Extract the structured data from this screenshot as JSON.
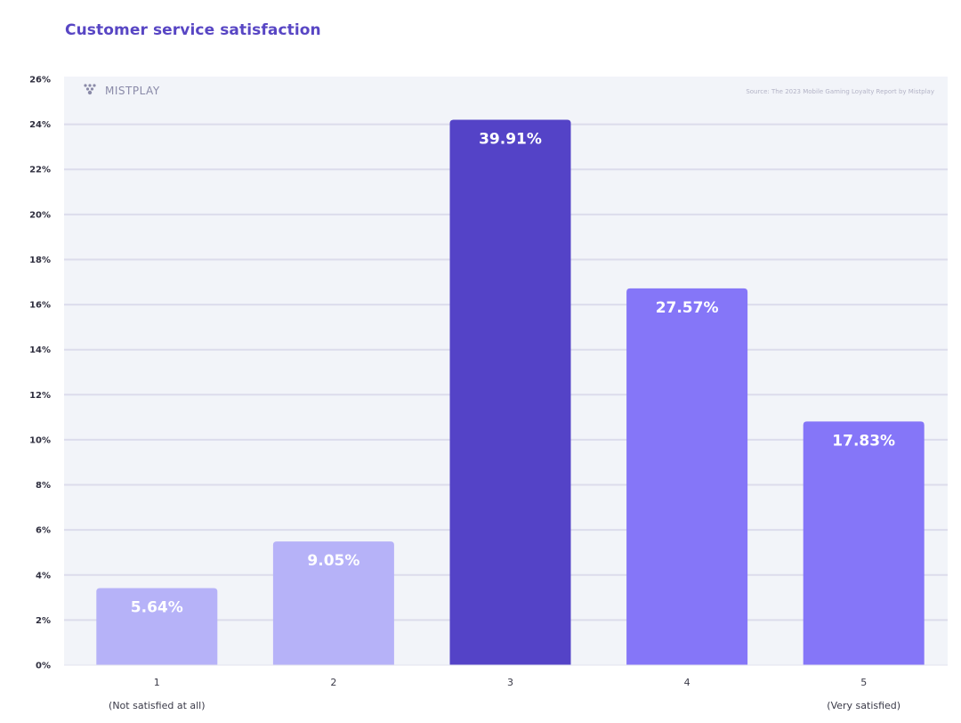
{
  "chart_data": {
    "type": "bar",
    "title": "Customer service satisfaction",
    "source": "Source: The 2023 Mobile Gaming Loyalty Report by Mistplay",
    "logo": "MISTPLAY",
    "categories": [
      "1",
      "2",
      "3",
      "4",
      "5"
    ],
    "category_sublabels": [
      "(Not satisfied at all)",
      "",
      "",
      "",
      "(Very satisfied)"
    ],
    "values": [
      5.64,
      9.05,
      39.91,
      27.57,
      17.83
    ],
    "value_labels": [
      "5.64%",
      "9.05%",
      "39.91%",
      "27.57%",
      "17.83%"
    ],
    "y_ticks": [
      "0%",
      "2%",
      "4%",
      "6%",
      "8%",
      "10%",
      "12%",
      "14%",
      "16%",
      "18%",
      "20%",
      "22%",
      "24%",
      "26%"
    ],
    "ylim": [
      0,
      26
    ],
    "y_scale_note": "tick labels run 0–26% while the bars are labeled with their own percentages",
    "bar_colors": [
      "#b6b2f8",
      "#b6b2f8",
      "#5443c7",
      "#8576f8",
      "#8576f8"
    ],
    "plot_background": "#f2f4f9",
    "grid_color": "#dcdcec",
    "grid": true,
    "xlabel": "",
    "ylabel": ""
  }
}
